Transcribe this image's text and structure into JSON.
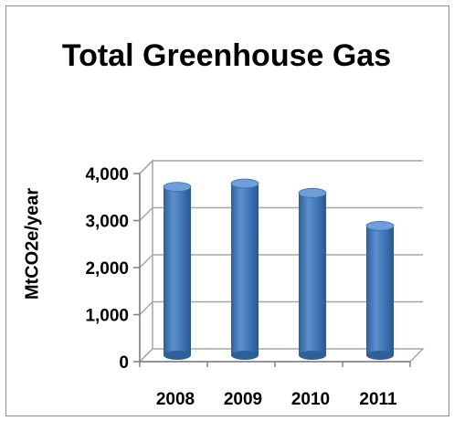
{
  "chart_data": {
    "type": "bar",
    "title": "Total Greenhouse Gas",
    "xlabel": "",
    "ylabel": "MtCO2e/year",
    "categories": [
      "2008",
      "2009",
      "2010",
      "2011"
    ],
    "values": [
      3580,
      3650,
      3450,
      2750
    ],
    "ylim": [
      0,
      4000
    ],
    "yticks": [
      0,
      1000,
      2000,
      3000,
      4000
    ],
    "ytick_labels": [
      "0",
      "1,000",
      "2,000",
      "3,000",
      "4,000"
    ],
    "grid": true,
    "legend": "none",
    "bar_color": "#4a7ebb"
  }
}
